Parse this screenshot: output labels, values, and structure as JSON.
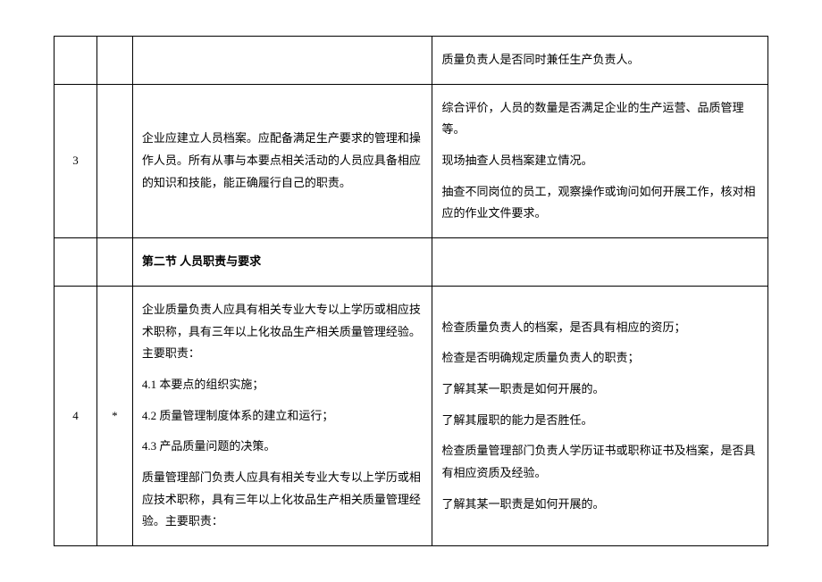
{
  "rows": [
    {
      "num": "",
      "star": "",
      "req": "",
      "check_lines": [
        "质量负责人是否同时兼任生产负责人。"
      ]
    },
    {
      "num": "3",
      "star": "",
      "req_lines": [
        "企业应建立人员档案。应配备满足生产要求的管理和操作人员。所有从事与本要点相关活动的人员应具备相应的知识和技能，能正确履行自己的职责。"
      ],
      "check_lines": [
        "综合评价，人员的数量是否满足企业的生产运营、品质管理等。",
        "现场抽查人员档案建立情况。",
        "抽查不同岗位的员工，观察操作或询问如何开展工作，核对相应的作业文件要求。"
      ]
    },
    {
      "num": "",
      "star": "",
      "section_header": "第二节 人员职责与要求",
      "check_lines": []
    },
    {
      "num": "4",
      "star": "*",
      "req_lines": [
        "企业质量负责人应具有相关专业大专以上学历或相应技术职称，具有三年以上化妆品生产相关质量管理经验。主要职责：",
        "4.1 本要点的组织实施；",
        "4.2 质量管理制度体系的建立和运行；",
        "4.3 产品质量问题的决策。",
        "质量管理部门负责人应具有相关专业大专以上学历或相应技术职称，具有三年以上化妆品生产相关质量管理经验。主要职责："
      ],
      "check_lines": [
        "检查质量负责人的档案，是否具有相应的资历；",
        "检查是否明确规定质量负责人的职责；",
        "了解其某一职责是如何开展的。",
        "了解其履职的能力是否胜任。",
        "检查质量管理部门负责人学历证书或职称证书及档案，是否具有相应资质及经验。",
        "了解其某一职责是如何开展的。"
      ]
    }
  ]
}
